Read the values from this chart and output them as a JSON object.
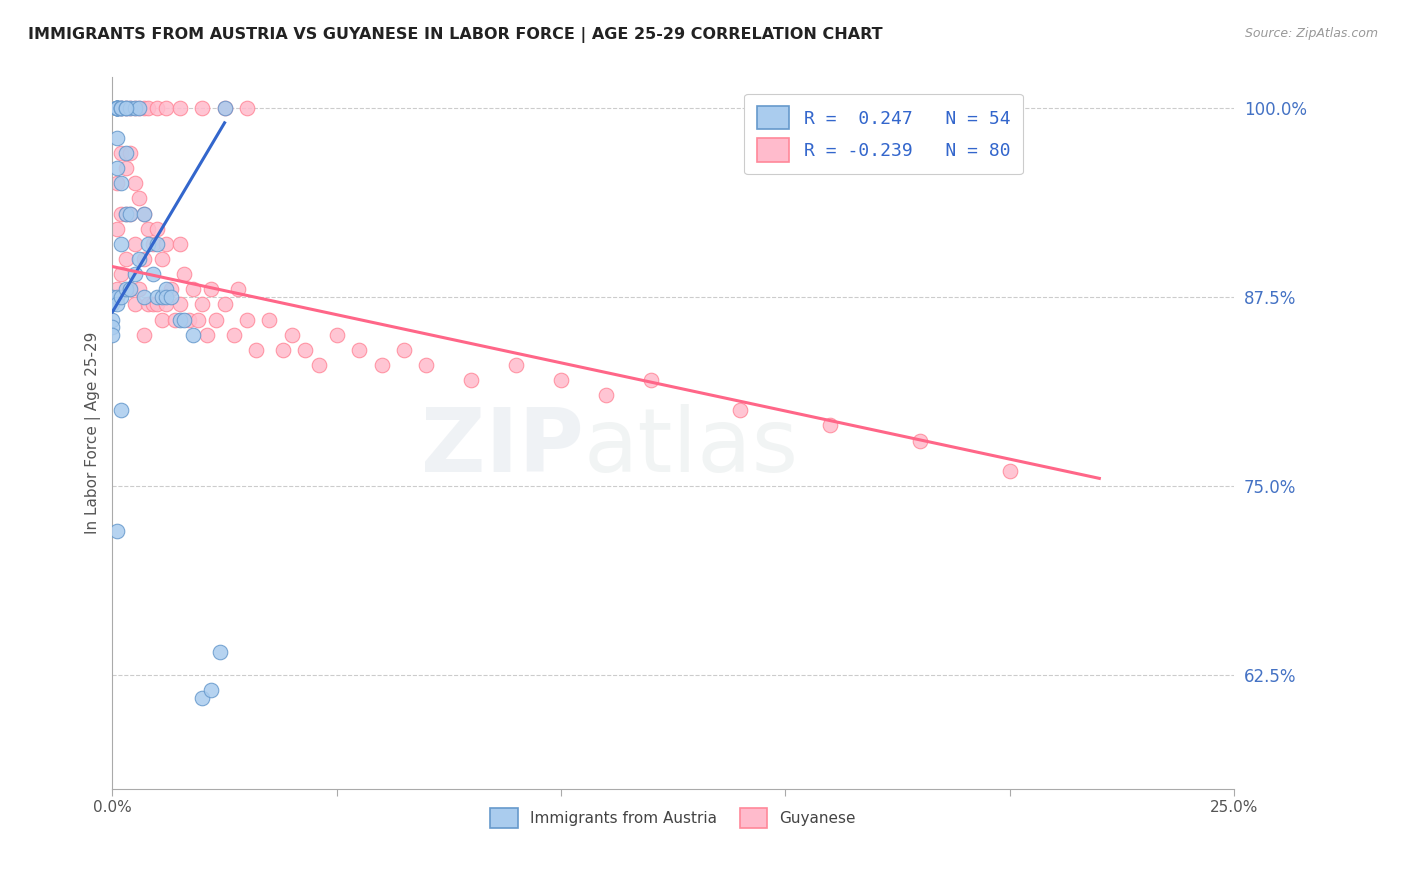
{
  "title": "IMMIGRANTS FROM AUSTRIA VS GUYANESE IN LABOR FORCE | AGE 25-29 CORRELATION CHART",
  "source": "Source: ZipAtlas.com",
  "ylabel": "In Labor Force | Age 25-29",
  "xlim": [
    0.0,
    0.25
  ],
  "ylim": [
    0.55,
    1.02
  ],
  "xticks": [
    0.0,
    0.05,
    0.1,
    0.15,
    0.2,
    0.25
  ],
  "xticklabels": [
    "0.0%",
    "",
    "",
    "",
    "",
    "25.0%"
  ],
  "yticks": [
    0.625,
    0.75,
    0.875,
    1.0
  ],
  "yticklabels": [
    "62.5%",
    "75.0%",
    "87.5%",
    "100.0%"
  ],
  "ytick_color": "#4472c4",
  "austria_color": "#aaccee",
  "austria_edge": "#6699cc",
  "guyanese_color": "#ffbbcc",
  "guyanese_edge": "#ff8899",
  "austria_line_color": "#3366cc",
  "guyanese_line_color": "#ff6688",
  "legend_austria_label": "Immigrants from Austria",
  "legend_guyanese_label": "Guyanese",
  "watermark_zip": "ZIP",
  "watermark_atlas": "atlas",
  "austria_x": [
    0.0,
    0.0,
    0.0,
    0.0,
    0.0,
    0.001,
    0.001,
    0.001,
    0.001,
    0.001,
    0.001,
    0.001,
    0.001,
    0.001,
    0.001,
    0.001,
    0.001,
    0.002,
    0.002,
    0.002,
    0.002,
    0.002,
    0.002,
    0.003,
    0.003,
    0.003,
    0.003,
    0.004,
    0.004,
    0.004,
    0.005,
    0.005,
    0.006,
    0.006,
    0.007,
    0.007,
    0.008,
    0.009,
    0.01,
    0.01,
    0.011,
    0.012,
    0.012,
    0.013,
    0.015,
    0.016,
    0.018,
    0.02,
    0.022,
    0.024,
    0.001,
    0.002,
    0.003,
    0.025
  ],
  "austria_y": [
    0.875,
    0.87,
    0.86,
    0.855,
    0.85,
    1.0,
    1.0,
    1.0,
    1.0,
    1.0,
    1.0,
    1.0,
    1.0,
    0.98,
    0.96,
    0.875,
    0.87,
    1.0,
    1.0,
    1.0,
    0.95,
    0.91,
    0.875,
    1.0,
    0.97,
    0.93,
    0.88,
    1.0,
    0.93,
    0.88,
    1.0,
    0.89,
    1.0,
    0.9,
    0.93,
    0.875,
    0.91,
    0.89,
    0.91,
    0.875,
    0.875,
    0.88,
    0.875,
    0.875,
    0.86,
    0.86,
    0.85,
    0.61,
    0.615,
    0.64,
    0.72,
    0.8,
    1.0,
    1.0
  ],
  "guyanese_x": [
    0.0,
    0.001,
    0.001,
    0.001,
    0.002,
    0.002,
    0.002,
    0.003,
    0.003,
    0.003,
    0.004,
    0.004,
    0.004,
    0.005,
    0.005,
    0.005,
    0.006,
    0.006,
    0.007,
    0.007,
    0.007,
    0.008,
    0.008,
    0.009,
    0.009,
    0.01,
    0.01,
    0.011,
    0.011,
    0.012,
    0.012,
    0.013,
    0.014,
    0.015,
    0.015,
    0.016,
    0.017,
    0.018,
    0.019,
    0.02,
    0.021,
    0.022,
    0.023,
    0.025,
    0.027,
    0.028,
    0.03,
    0.032,
    0.035,
    0.038,
    0.04,
    0.043,
    0.046,
    0.05,
    0.055,
    0.06,
    0.065,
    0.07,
    0.08,
    0.09,
    0.1,
    0.11,
    0.12,
    0.14,
    0.16,
    0.18,
    0.2,
    0.002,
    0.003,
    0.004,
    0.005,
    0.006,
    0.007,
    0.008,
    0.01,
    0.012,
    0.015,
    0.02,
    0.025,
    0.03
  ],
  "guyanese_y": [
    0.875,
    0.95,
    0.92,
    0.88,
    0.97,
    0.93,
    0.89,
    0.96,
    0.93,
    0.9,
    0.97,
    0.93,
    0.88,
    0.95,
    0.91,
    0.87,
    0.94,
    0.88,
    0.93,
    0.9,
    0.85,
    0.92,
    0.87,
    0.91,
    0.87,
    0.92,
    0.87,
    0.9,
    0.86,
    0.91,
    0.87,
    0.88,
    0.86,
    0.91,
    0.87,
    0.89,
    0.86,
    0.88,
    0.86,
    0.87,
    0.85,
    0.88,
    0.86,
    0.87,
    0.85,
    0.88,
    0.86,
    0.84,
    0.86,
    0.84,
    0.85,
    0.84,
    0.83,
    0.85,
    0.84,
    0.83,
    0.84,
    0.83,
    0.82,
    0.83,
    0.82,
    0.81,
    0.82,
    0.8,
    0.79,
    0.78,
    0.76,
    1.0,
    1.0,
    1.0,
    1.0,
    1.0,
    1.0,
    1.0,
    1.0,
    1.0,
    1.0,
    1.0,
    1.0,
    1.0
  ],
  "austria_line_x": [
    0.0,
    0.025
  ],
  "austria_line_y": [
    0.865,
    0.99
  ],
  "guyanese_line_x": [
    0.0,
    0.22
  ],
  "guyanese_line_y": [
    0.895,
    0.755
  ]
}
